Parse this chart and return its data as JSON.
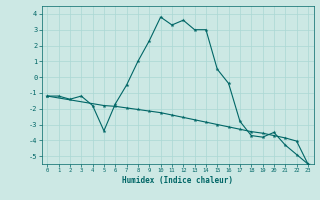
{
  "xlabel": "Humidex (Indice chaleur)",
  "background_color": "#cce8e4",
  "grid_color": "#aad8d4",
  "line_color": "#006666",
  "xlim": [
    -0.5,
    23.5
  ],
  "ylim": [
    -5.5,
    4.5
  ],
  "yticks": [
    -5,
    -4,
    -3,
    -2,
    -1,
    0,
    1,
    2,
    3,
    4
  ],
  "xticks": [
    0,
    1,
    2,
    3,
    4,
    5,
    6,
    7,
    8,
    9,
    10,
    11,
    12,
    13,
    14,
    15,
    16,
    17,
    18,
    19,
    20,
    21,
    22,
    23
  ],
  "line1_x": [
    0,
    1,
    2,
    3,
    4,
    5,
    6,
    7,
    8,
    9,
    10,
    11,
    12,
    13,
    14,
    15,
    16,
    17,
    18,
    19,
    20,
    21,
    22,
    23
  ],
  "line1_y": [
    -1.2,
    -1.2,
    -1.4,
    -1.2,
    -1.8,
    -3.4,
    -1.7,
    -0.5,
    1.0,
    2.3,
    3.8,
    3.3,
    3.6,
    3.0,
    3.0,
    0.5,
    -0.4,
    -2.8,
    -3.7,
    -3.8,
    -3.5,
    -4.3,
    -4.9,
    -5.5
  ],
  "line2_x": [
    0,
    5,
    6,
    7,
    8,
    9,
    10,
    11,
    12,
    13,
    14,
    15,
    16,
    17,
    18,
    19,
    20,
    21,
    22,
    23
  ],
  "line2_y": [
    -1.2,
    -1.8,
    -1.85,
    -1.95,
    -2.05,
    -2.15,
    -2.25,
    -2.4,
    -2.55,
    -2.7,
    -2.85,
    -3.0,
    -3.15,
    -3.3,
    -3.45,
    -3.55,
    -3.7,
    -3.85,
    -4.05,
    -5.5
  ]
}
